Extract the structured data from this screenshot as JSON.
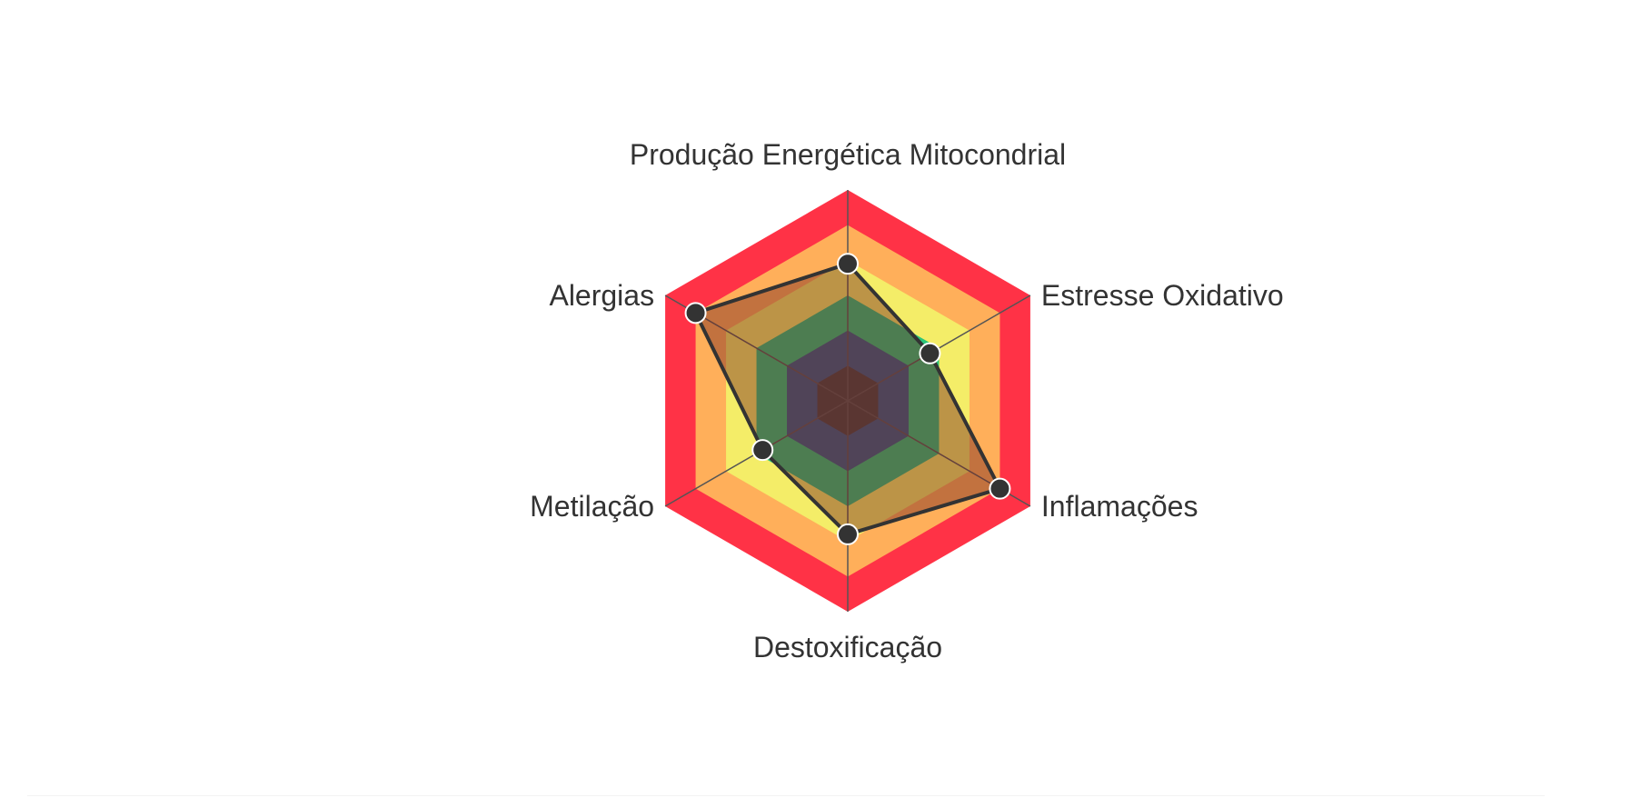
{
  "chart_data": {
    "type": "radar",
    "title": "",
    "axes": [
      "Produção Energética Mitocondrial",
      "Estresse Oxidativo",
      "Inflamações",
      "Destoxificação",
      "Metilação",
      "Alergias"
    ],
    "scale": [
      0,
      6
    ],
    "bands": [
      {
        "from": 0,
        "to": 1,
        "color": "#434343"
      },
      {
        "from": 1,
        "to": 2,
        "color": "#315b88"
      },
      {
        "from": 2,
        "to": 3,
        "color": "#2bc47a"
      },
      {
        "from": 3,
        "to": 4,
        "color": "#f4ed68"
      },
      {
        "from": 4,
        "to": 5,
        "color": "#ffaf5a"
      },
      {
        "from": 5,
        "to": 6,
        "color": "#ff3246"
      }
    ],
    "series": [
      {
        "values": [
          3.9,
          2.7,
          5.0,
          3.8,
          2.8,
          5.0
        ],
        "line_color": "#333333",
        "fill_color": "rgba(120, 40, 30, 0.45)",
        "marker_color": "#333333"
      }
    ],
    "grid_color": "#555555",
    "legend": "none"
  }
}
